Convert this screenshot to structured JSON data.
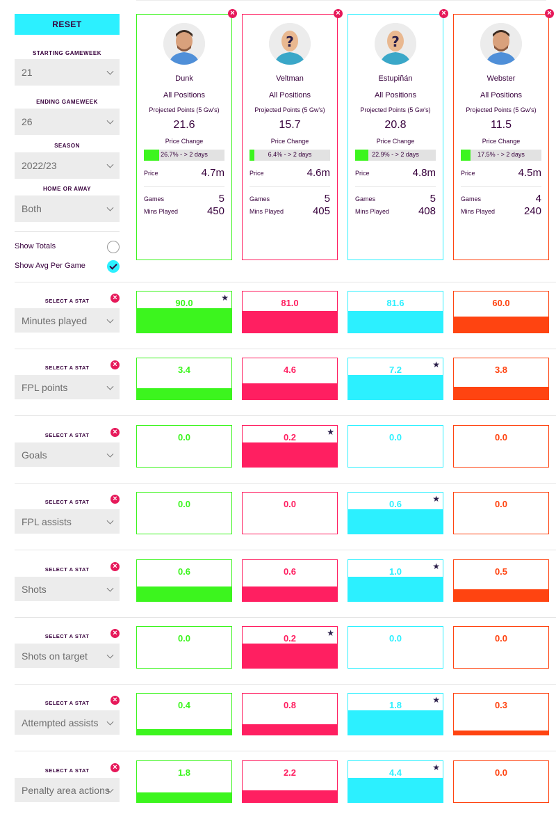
{
  "sidebar": {
    "reset_label": "RESET",
    "starting_gameweek": {
      "label": "STARTING GAMEWEEK",
      "value": "21"
    },
    "ending_gameweek": {
      "label": "ENDING GAMEWEEK",
      "value": "26"
    },
    "season": {
      "label": "SEASON",
      "value": "2022/23"
    },
    "home_or_away": {
      "label": "HOME OR AWAY",
      "value": "Both"
    },
    "show_totals": {
      "label": "Show Totals",
      "checked": false
    },
    "show_avg": {
      "label": "Show Avg Per Game",
      "checked": true
    }
  },
  "card_labels": {
    "projected": "Projected Points (5 Gw's)",
    "price_change": "Price Change",
    "price": "Price",
    "games": "Games",
    "mins_played": "Mins Played"
  },
  "players": [
    {
      "name": "Dunk",
      "position": "All Positions",
      "projected": "21.6",
      "price_change": "26.7% - > 2 days",
      "price_change_pct": 26.7,
      "price": "4.7m",
      "games": "5",
      "mins": "450",
      "color": "#3cf51e",
      "avatar": "player-photo"
    },
    {
      "name": "Veltman",
      "position": "All Positions",
      "projected": "15.7",
      "price_change": "6.4% - > 2 days",
      "price_change_pct": 6.4,
      "price": "4.6m",
      "games": "5",
      "mins": "405",
      "color": "#ff1f61",
      "avatar": "unknown-player"
    },
    {
      "name": "Estupiñán",
      "position": "All Positions",
      "projected": "20.8",
      "price_change": "22.9% - > 2 days",
      "price_change_pct": 22.9,
      "price": "4.8m",
      "games": "5",
      "mins": "408",
      "color": "#2cf0ff",
      "avatar": "unknown-player"
    },
    {
      "name": "Webster",
      "position": "All Positions",
      "projected": "11.5",
      "price_change": "17.5% - > 2 days",
      "price_change_pct": 17.5,
      "price": "4.5m",
      "games": "4",
      "mins": "240",
      "color": "#ff4411",
      "avatar": "player-photo"
    }
  ],
  "select_stat_label": "SELECT A STAT",
  "stats": [
    {
      "name": "Minutes played",
      "values": [
        "90.0",
        "81.0",
        "81.6",
        "60.0"
      ],
      "fill": [
        0.57,
        0.51,
        0.51,
        0.38
      ],
      "best": 0
    },
    {
      "name": "FPL points",
      "values": [
        "3.4",
        "4.6",
        "7.2",
        "3.8"
      ],
      "fill": [
        0.27,
        0.37,
        0.57,
        0.3
      ],
      "best": 2
    },
    {
      "name": "Goals",
      "values": [
        "0.0",
        "0.2",
        "0.0",
        "0.0"
      ],
      "fill": [
        0,
        0.57,
        0,
        0
      ],
      "best": 1
    },
    {
      "name": "FPL assists",
      "values": [
        "0.0",
        "0.0",
        "0.6",
        "0.0"
      ],
      "fill": [
        0,
        0,
        0.57,
        0
      ],
      "best": 2
    },
    {
      "name": "Shots",
      "values": [
        "0.6",
        "0.6",
        "1.0",
        "0.5"
      ],
      "fill": [
        0.34,
        0.34,
        0.57,
        0.28
      ],
      "best": 2
    },
    {
      "name": "Shots on target",
      "values": [
        "0.0",
        "0.2",
        "0.0",
        "0.0"
      ],
      "fill": [
        0,
        0.57,
        0,
        0
      ],
      "best": 1
    },
    {
      "name": "Attempted assists",
      "values": [
        "0.4",
        "0.8",
        "1.8",
        "0.3"
      ],
      "fill": [
        0.13,
        0.25,
        0.57,
        0.1
      ],
      "best": 2
    },
    {
      "name": "Penalty area actions",
      "values": [
        "1.8",
        "2.2",
        "4.4",
        "0.0"
      ],
      "fill": [
        0.23,
        0.28,
        0.57,
        0
      ],
      "best": 2
    }
  ]
}
